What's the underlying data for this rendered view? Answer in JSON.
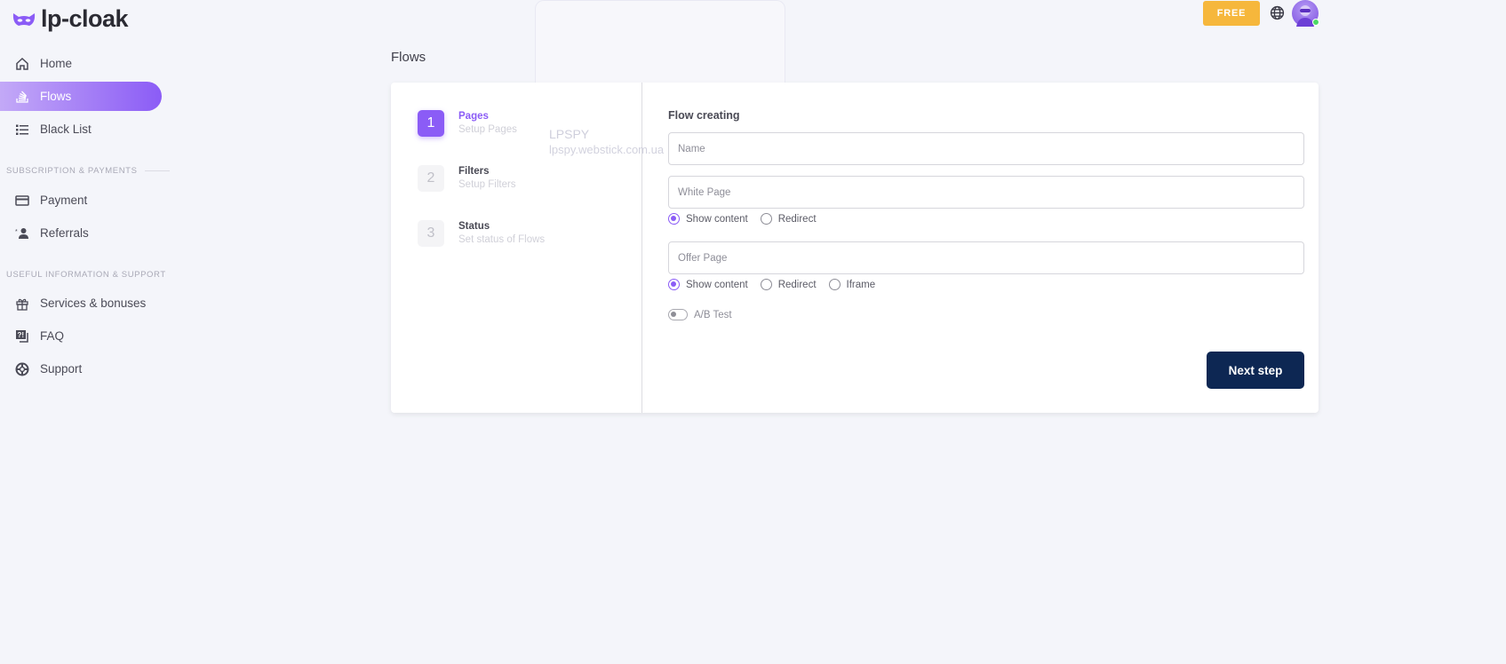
{
  "brand": {
    "name": "lp-cloak",
    "color": "#8b5cf6"
  },
  "sidebar": {
    "items": [
      {
        "label": "Home",
        "icon": "home-icon"
      },
      {
        "label": "Flows",
        "icon": "flows-icon",
        "active": true
      },
      {
        "label": "Black List",
        "icon": "list-icon"
      },
      {
        "label": "Payment",
        "icon": "credit-card-icon"
      },
      {
        "label": "Referrals",
        "icon": "user-star-icon"
      },
      {
        "label": "Services & bonuses",
        "icon": "gift-icon"
      },
      {
        "label": "FAQ",
        "icon": "faq-icon"
      },
      {
        "label": "Support",
        "icon": "lifebuoy-icon"
      }
    ],
    "sections": [
      "SUBSCRIPTION & PAYMENTS",
      "USEFUL INFORMATION & SUPPORT"
    ]
  },
  "header": {
    "plan_label": "FREE",
    "plan_color": "#f6b73c",
    "language_icon": "globe-icon",
    "online_status_color": "#4cd964"
  },
  "background_card": {
    "title": "LPSPY",
    "subtitle": "lpspy.webstick.com.ua"
  },
  "main": {
    "title": "Flows",
    "steps": [
      {
        "number": "1",
        "title": "Pages",
        "subtitle": "Setup Pages",
        "active": true
      },
      {
        "number": "2",
        "title": "Filters",
        "subtitle": "Setup Filters"
      },
      {
        "number": "3",
        "title": "Status",
        "subtitle": "Set status of Flows"
      }
    ],
    "form": {
      "title": "Flow creating",
      "name_placeholder": "Name",
      "white_page_placeholder": "White Page",
      "white_options": [
        "Show content",
        "Redirect"
      ],
      "white_selected": "Show content",
      "offer_page_placeholder": "Offer Page",
      "offer_options": [
        "Show content",
        "Redirect",
        "Iframe"
      ],
      "offer_selected": "Show content",
      "ab_test_label": "A/B Test",
      "ab_test_enabled": false,
      "next_label": "Next step",
      "next_color": "#0d2753"
    }
  }
}
